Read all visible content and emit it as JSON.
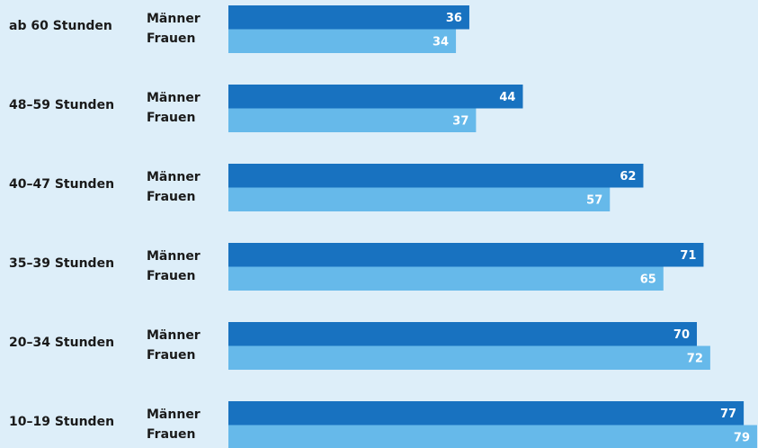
{
  "chart_data": {
    "type": "bar",
    "categories": [
      "ab 60 Stunden",
      "48–59 Stunden",
      "40–47 Stunden",
      "35–39 Stunden",
      "20–34 Stunden",
      "10–19 Stunden"
    ],
    "series": [
      {
        "name": "Männer",
        "color": "#1872c0",
        "values": [
          36,
          44,
          62,
          71,
          70,
          77
        ]
      },
      {
        "name": "Frauen",
        "color": "#66b9ea",
        "values": [
          34,
          37,
          57,
          65,
          72,
          79
        ]
      }
    ]
  }
}
